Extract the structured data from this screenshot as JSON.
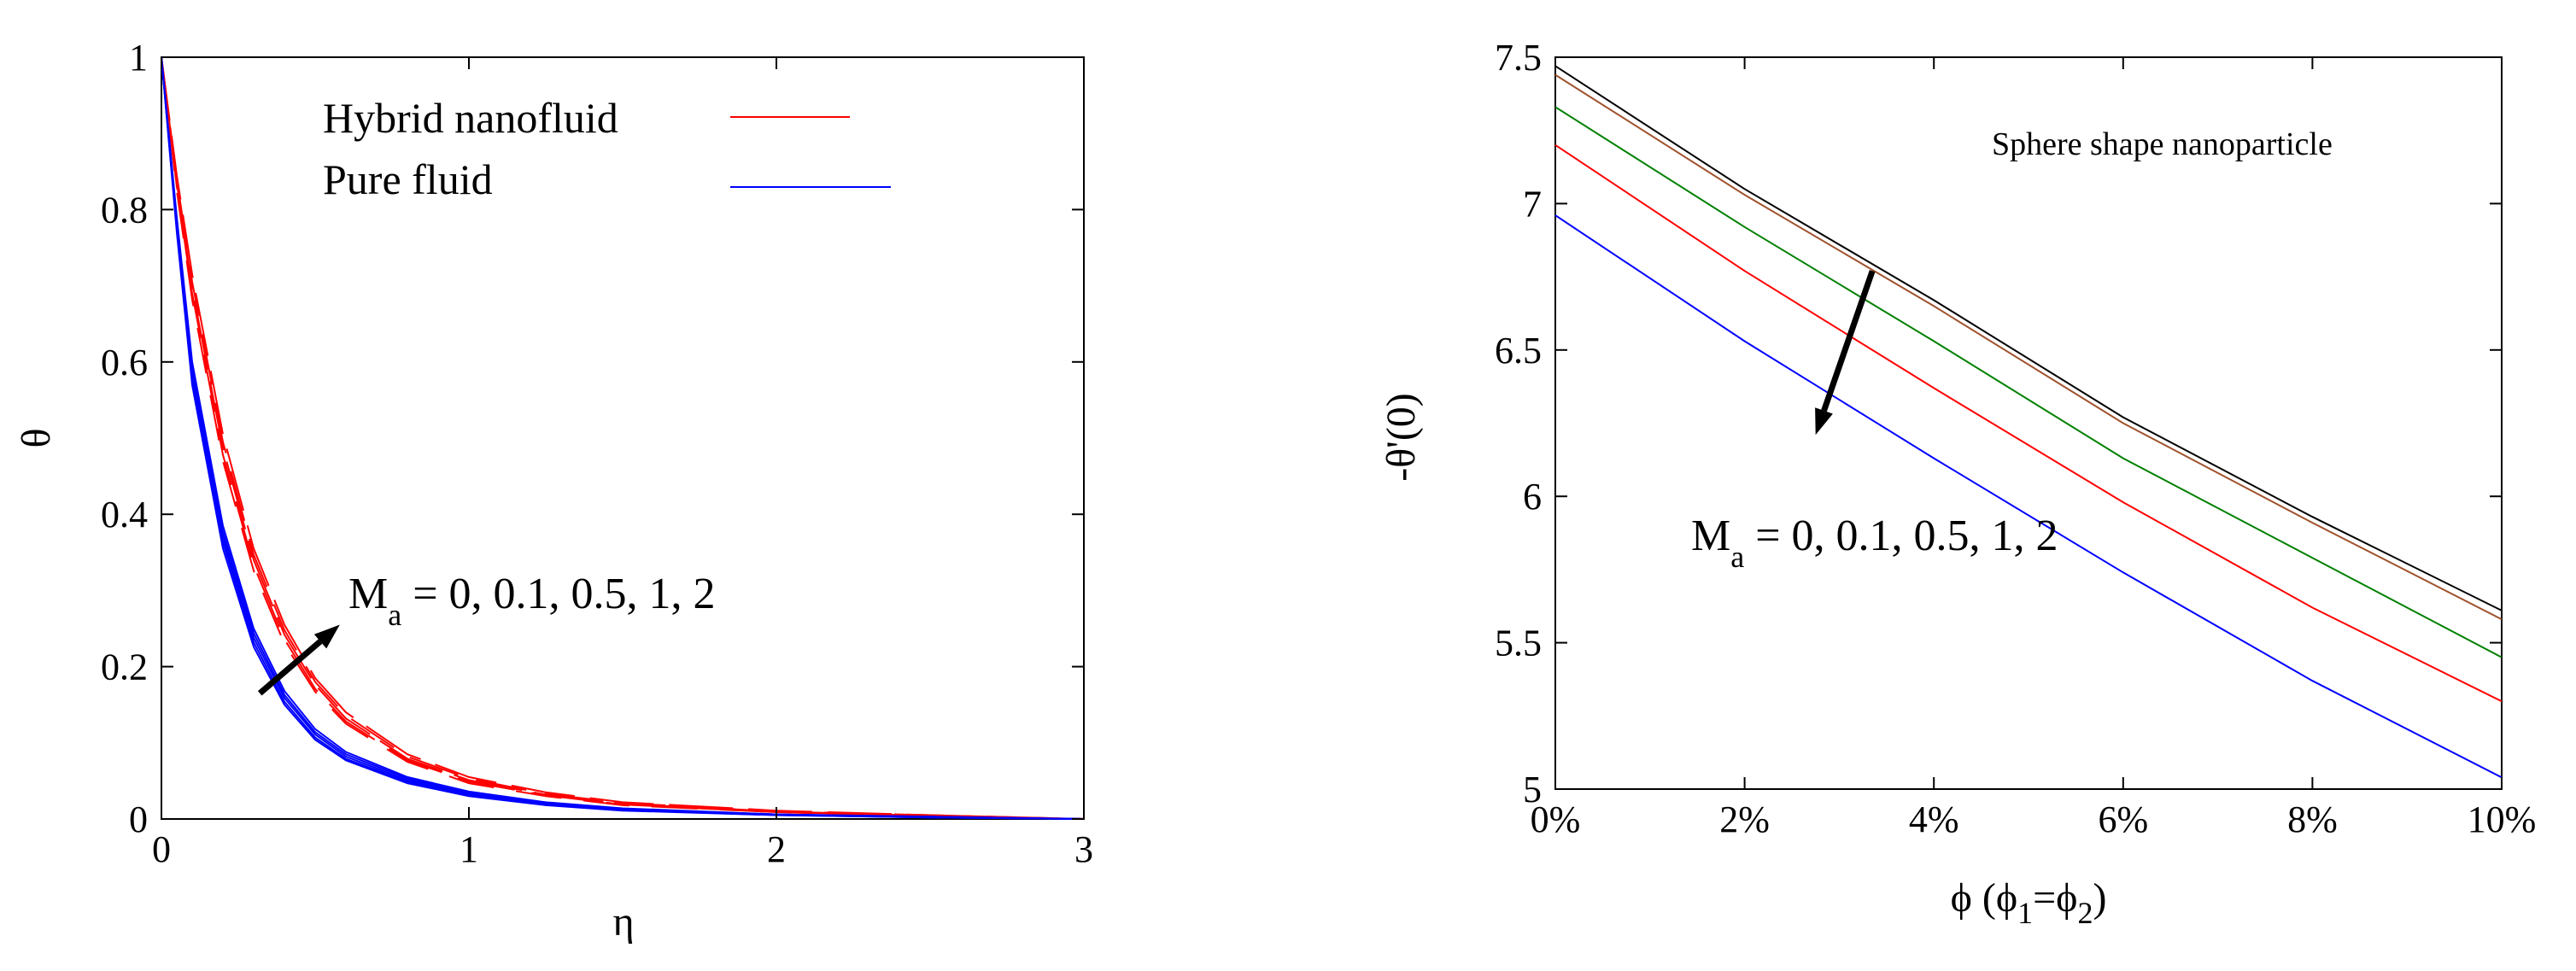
{
  "chart_data": [
    {
      "type": "line",
      "title": "",
      "xlabel": "η",
      "ylabel": "θ",
      "xlim": [
        0,
        3
      ],
      "ylim": [
        0,
        1
      ],
      "xticks": [
        "0",
        "1",
        "2",
        "3"
      ],
      "yticks": [
        "0",
        "0.2",
        "0.4",
        "0.6",
        "0.8",
        "1"
      ],
      "legend": {
        "placement": "top-right",
        "entries": [
          {
            "label": "Hybrid nanofluid",
            "color": "#ff0000",
            "dash": "dashed"
          },
          {
            "label": "Pure fluid",
            "color": "#0000ff",
            "dash": "solid"
          }
        ]
      },
      "annotation": {
        "main": "M",
        "sub": "a",
        "rest": " = 0, 0.1, 0.5, 1, 2"
      },
      "x": [
        0,
        0.05,
        0.1,
        0.2,
        0.3,
        0.4,
        0.5,
        0.6,
        0.8,
        1.0,
        1.25,
        1.5,
        2.0,
        2.5,
        3.0
      ],
      "series": [
        {
          "group": "Hybrid nanofluid",
          "color": "#ff0000",
          "dash": "dashed",
          "values": [
            1.0,
            0.845,
            0.715,
            0.505,
            0.355,
            0.255,
            0.185,
            0.14,
            0.085,
            0.055,
            0.035,
            0.022,
            0.011,
            0.005,
            0.0
          ]
        },
        {
          "group": "Hybrid nanofluid",
          "color": "#ff0000",
          "dash": "dashed",
          "values": [
            1.0,
            0.84,
            0.705,
            0.495,
            0.347,
            0.248,
            0.18,
            0.136,
            0.082,
            0.053,
            0.033,
            0.021,
            0.01,
            0.005,
            0.0
          ]
        },
        {
          "group": "Hybrid nanofluid",
          "color": "#ff0000",
          "dash": "dashed",
          "values": [
            1.0,
            0.835,
            0.697,
            0.487,
            0.34,
            0.242,
            0.176,
            0.132,
            0.079,
            0.051,
            0.032,
            0.02,
            0.01,
            0.004,
            0.0
          ]
        },
        {
          "group": "Hybrid nanofluid",
          "color": "#ff0000",
          "dash": "dashed",
          "values": [
            1.0,
            0.83,
            0.69,
            0.478,
            0.333,
            0.236,
            0.171,
            0.128,
            0.077,
            0.049,
            0.031,
            0.019,
            0.009,
            0.004,
            0.0
          ]
        },
        {
          "group": "Hybrid nanofluid",
          "color": "#ff0000",
          "dash": "dashed",
          "values": [
            1.0,
            0.825,
            0.682,
            0.47,
            0.326,
            0.23,
            0.167,
            0.125,
            0.075,
            0.047,
            0.03,
            0.018,
            0.009,
            0.004,
            0.0
          ]
        },
        {
          "group": "Pure fluid",
          "color": "#0000ff",
          "dash": "solid",
          "values": [
            1.0,
            0.79,
            0.6,
            0.385,
            0.25,
            0.168,
            0.118,
            0.088,
            0.055,
            0.036,
            0.022,
            0.014,
            0.006,
            0.003,
            0.0
          ]
        },
        {
          "group": "Pure fluid",
          "color": "#0000ff",
          "dash": "solid",
          "values": [
            1.0,
            0.785,
            0.592,
            0.377,
            0.244,
            0.163,
            0.114,
            0.085,
            0.053,
            0.034,
            0.021,
            0.013,
            0.006,
            0.003,
            0.0
          ]
        },
        {
          "group": "Pure fluid",
          "color": "#0000ff",
          "dash": "solid",
          "values": [
            1.0,
            0.78,
            0.585,
            0.37,
            0.238,
            0.159,
            0.111,
            0.082,
            0.051,
            0.033,
            0.02,
            0.013,
            0.006,
            0.002,
            0.0
          ]
        },
        {
          "group": "Pure fluid",
          "color": "#0000ff",
          "dash": "solid",
          "values": [
            1.0,
            0.775,
            0.578,
            0.363,
            0.232,
            0.154,
            0.107,
            0.079,
            0.049,
            0.031,
            0.019,
            0.012,
            0.005,
            0.002,
            0.0
          ]
        },
        {
          "group": "Pure fluid",
          "color": "#0000ff",
          "dash": "solid",
          "values": [
            1.0,
            0.77,
            0.57,
            0.355,
            0.226,
            0.15,
            0.104,
            0.077,
            0.047,
            0.03,
            0.018,
            0.011,
            0.005,
            0.002,
            0.0
          ]
        }
      ],
      "arrow": {
        "from": [
          0.32,
          0.165
        ],
        "to": [
          0.58,
          0.255
        ]
      },
      "grid": false
    },
    {
      "type": "line",
      "title": "",
      "xlabel": {
        "main": "ϕ (ϕ",
        "sub1": "1",
        "mid": "=ϕ",
        "sub2": "2",
        "end": ")"
      },
      "ylabel": "-θ'(0)",
      "xlim": [
        0,
        10
      ],
      "ylim": [
        5,
        7.5
      ],
      "xticks": [
        "0%",
        "2%",
        "4%",
        "6%",
        "8%",
        "10%"
      ],
      "yticks": [
        "5",
        "5.5",
        "6",
        "6.5",
        "7",
        "7.5"
      ],
      "note": "Sphere shape nanoparticle",
      "annotation": {
        "main": "M",
        "sub": "a",
        "rest": " = 0, 0.1, 0.5, 1, 2"
      },
      "x": [
        0,
        2,
        4,
        6,
        8,
        10
      ],
      "series": [
        {
          "color": "#000000",
          "values": [
            7.47,
            7.05,
            6.67,
            6.27,
            5.93,
            5.61
          ]
        },
        {
          "color": "#a0522d",
          "values": [
            7.44,
            7.03,
            6.65,
            6.25,
            5.91,
            5.58
          ]
        },
        {
          "color": "#008000",
          "values": [
            7.33,
            6.92,
            6.53,
            6.13,
            5.79,
            5.45
          ]
        },
        {
          "color": "#ff0000",
          "values": [
            7.2,
            6.77,
            6.37,
            5.98,
            5.62,
            5.3
          ]
        },
        {
          "color": "#0000ff",
          "values": [
            6.96,
            6.53,
            6.13,
            5.74,
            5.37,
            5.04
          ]
        }
      ],
      "arrow": {
        "from": [
          3.35,
          6.77
        ],
        "to": [
          2.75,
          6.21
        ]
      },
      "grid": false
    }
  ]
}
